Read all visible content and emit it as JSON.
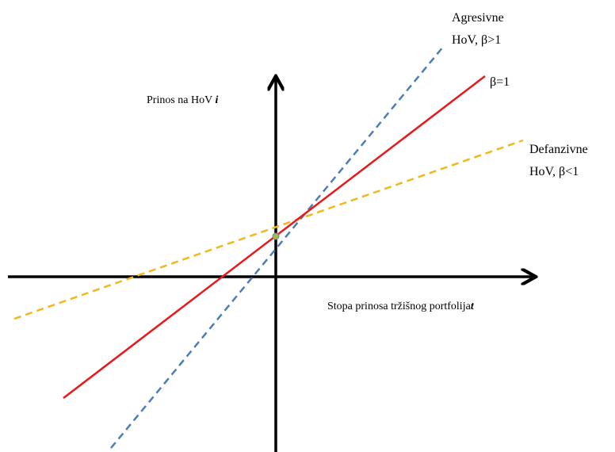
{
  "labels": {
    "aggressive": [
      "Agresivne",
      "HoV, β>1"
    ],
    "market": "β=1",
    "defensive": [
      "Defanzivne",
      "HoV, β<1"
    ],
    "y_axis": {
      "text": "Prinos na HoV ",
      "symbol": "i"
    },
    "x_axis": {
      "text": "Stopa prinosa tržišnog portfolija",
      "symbol": "t"
    }
  }
}
